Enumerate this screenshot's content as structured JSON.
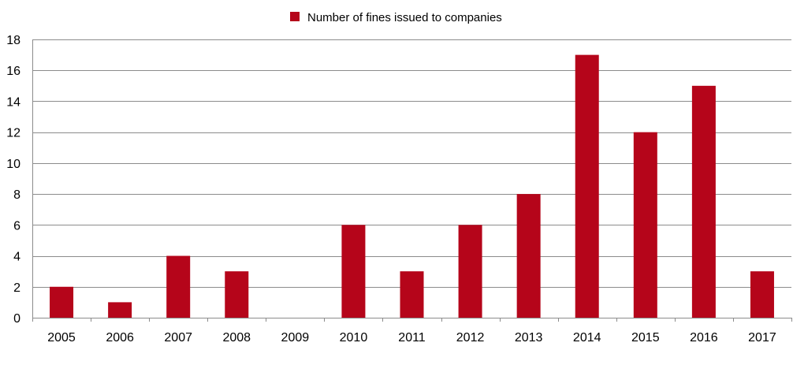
{
  "chart_data": {
    "type": "bar",
    "categories": [
      "2005",
      "2006",
      "2007",
      "2008",
      "2009",
      "2010",
      "2011",
      "2012",
      "2013",
      "2014",
      "2015",
      "2016",
      "2017"
    ],
    "series": [
      {
        "name": "Number of fines issued to companies",
        "values": [
          2,
          1,
          4,
          3,
          0,
          6,
          3,
          6,
          8,
          17,
          12,
          15,
          3
        ],
        "color": "#b5051a"
      }
    ],
    "title": "",
    "xlabel": "",
    "ylabel": "",
    "ylim": [
      0,
      18
    ],
    "yticks": [
      0,
      2,
      4,
      6,
      8,
      10,
      12,
      14,
      16,
      18
    ],
    "grid": true,
    "legend": "top-center"
  }
}
